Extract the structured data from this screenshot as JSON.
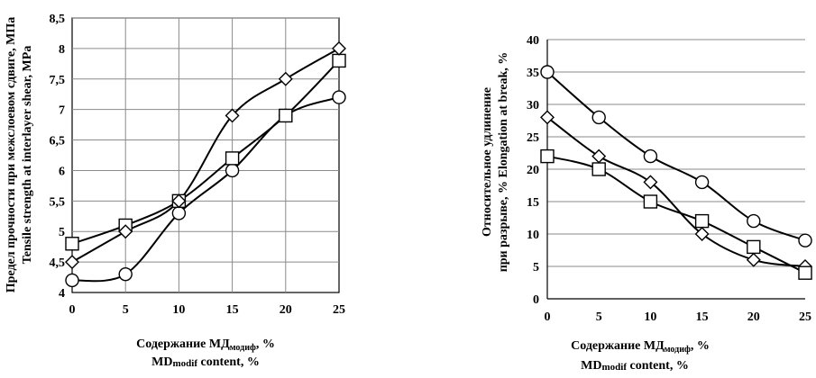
{
  "chart_data": [
    {
      "type": "line",
      "x": [
        0,
        5,
        10,
        15,
        20,
        25
      ],
      "xlim": [
        0,
        25
      ],
      "xticks": [
        "0",
        "5",
        "10",
        "15",
        "20",
        "25"
      ],
      "ylim": [
        4,
        8.5
      ],
      "yticks": [
        "4",
        "4,5",
        "5",
        "5,5",
        "6",
        "6,5",
        "7",
        "7,5",
        "8",
        "8,5"
      ],
      "ylabel_ru": "Предел прочности при межслоевом сдвиге, МПа",
      "ylabel_en": "Tensile strength at interlayer shear, MPa",
      "xlabel_ru_main": "Содержание  МД",
      "xlabel_ru_sub": "модиф",
      "xlabel_ru_unit": ", %",
      "xlabel_en_main": "MD",
      "xlabel_en_sub": "modif",
      "xlabel_en_unit": " content,  %",
      "grid": true,
      "series": [
        {
          "name": "circle",
          "marker": "circle",
          "values": [
            4.2,
            4.3,
            5.3,
            6.0,
            6.9,
            7.2
          ]
        },
        {
          "name": "square",
          "marker": "square",
          "values": [
            4.8,
            5.1,
            5.5,
            6.2,
            6.9,
            7.8
          ]
        },
        {
          "name": "diamond",
          "marker": "diamond",
          "values": [
            4.5,
            5.0,
            5.5,
            6.9,
            7.5,
            8.0
          ]
        }
      ]
    },
    {
      "type": "line",
      "x": [
        0,
        5,
        10,
        15,
        20,
        25
      ],
      "xlim": [
        0,
        25
      ],
      "xticks": [
        "0",
        "5",
        "10",
        "15",
        "20",
        "25"
      ],
      "ylim": [
        0,
        40
      ],
      "yticks": [
        "0",
        "5",
        "10",
        "15",
        "20",
        "25",
        "30",
        "35",
        "40"
      ],
      "ylabel_ru_1": "Относительное удлинение",
      "ylabel_ru_2": "при разрыве, %",
      "ylabel_en": "Elongation at break, %",
      "xlabel_ru_main": "Содержание  МД",
      "xlabel_ru_sub": "модиф",
      "xlabel_ru_unit": ", %",
      "xlabel_en_main": "MD",
      "xlabel_en_sub": "modif",
      "xlabel_en_unit": " content,  %",
      "grid": true,
      "series": [
        {
          "name": "circle",
          "marker": "circle",
          "values": [
            35,
            28,
            22,
            18,
            12,
            9
          ]
        },
        {
          "name": "diamond",
          "marker": "diamond",
          "values": [
            28,
            22,
            18,
            10,
            6,
            5
          ]
        },
        {
          "name": "square",
          "marker": "square",
          "values": [
            22,
            20,
            15,
            12,
            8,
            4
          ]
        }
      ]
    }
  ]
}
